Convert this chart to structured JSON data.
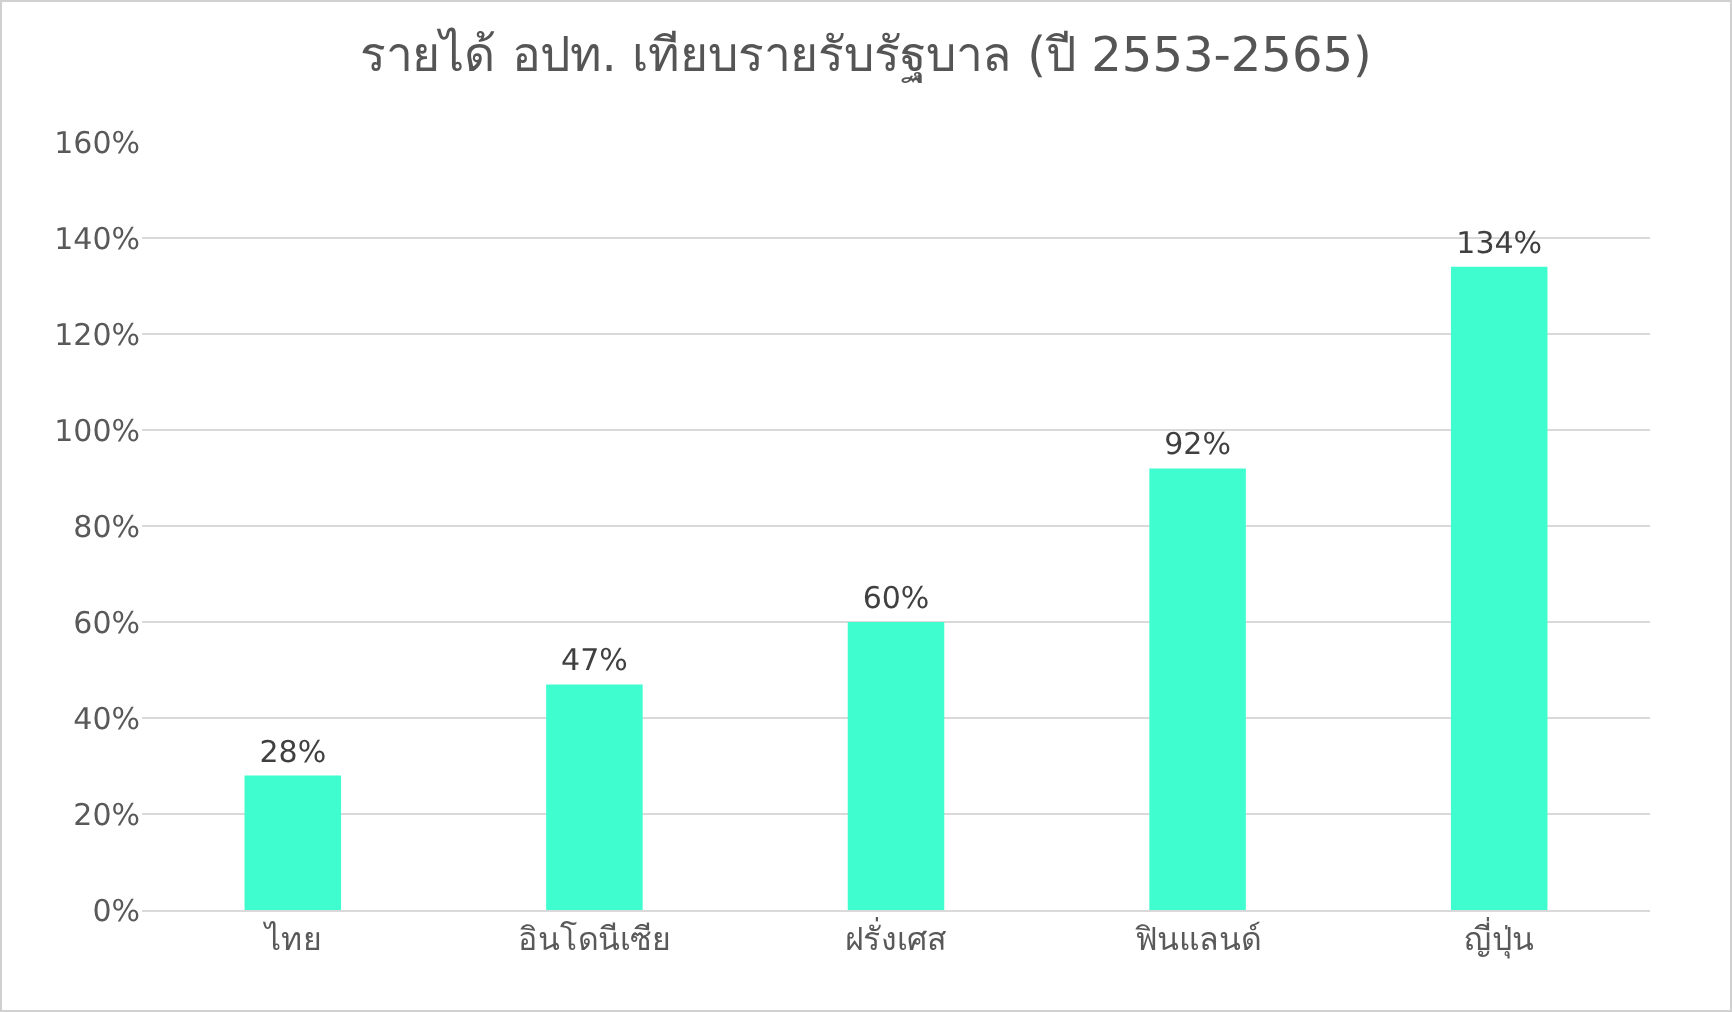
{
  "chart_data": {
    "type": "bar",
    "title": "รายได้ อปท. เทียบรายรับรัฐบาล (ปี 2553-2565)",
    "categories": [
      "ไทย",
      "อินโดนีเซีย",
      "ฝรั่งเศส",
      "ฟินแลนด์",
      "ญี่ปุ่น"
    ],
    "values": [
      28,
      47,
      60,
      92,
      134
    ],
    "value_labels": [
      "28%",
      "47%",
      "60%",
      "92%",
      "134%"
    ],
    "color": "#40fdd0",
    "ylim": [
      0,
      160
    ],
    "yticks": [
      {
        "value": 0,
        "label": "0%"
      },
      {
        "value": 20,
        "label": "20%"
      },
      {
        "value": 40,
        "label": "40%"
      },
      {
        "value": 60,
        "label": "60%"
      },
      {
        "value": 80,
        "label": "80%"
      },
      {
        "value": 100,
        "label": "100%"
      },
      {
        "value": 120,
        "label": "120%"
      },
      {
        "value": 140,
        "label": "140%"
      },
      {
        "value": 160,
        "label": "160%"
      }
    ],
    "grid": "y",
    "legend": false
  }
}
